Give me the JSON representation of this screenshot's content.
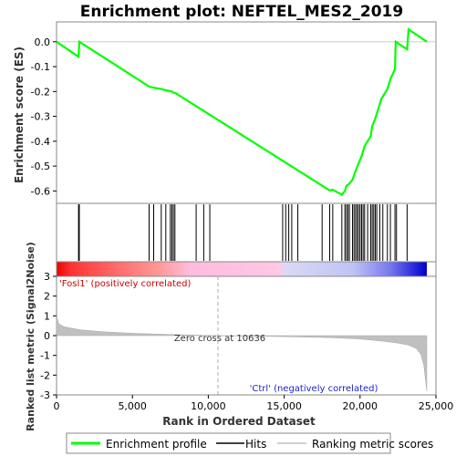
{
  "chart_data": {
    "type": "line",
    "title": "Enrichment plot: NEFTEL_MES2_2019",
    "xlabel": "Rank in Ordered Dataset",
    "ylabel_top": "Enrichment score (ES)",
    "ylabel_bottom": "Ranked list metric (Signal2Noise)",
    "xlim": [
      0,
      25000
    ],
    "x_ticks": [
      "0",
      "5,000",
      "10,000",
      "15,000",
      "20,000",
      "25,000"
    ],
    "x_tick_values": [
      0,
      5000,
      10000,
      15000,
      20000,
      25000
    ],
    "es_ylim": [
      -0.65,
      0.08
    ],
    "es_ticks": [
      "0.0",
      "-0.1",
      "-0.2",
      "-0.3",
      "-0.4",
      "-0.5",
      "-0.6"
    ],
    "es_tick_values": [
      0.0,
      -0.1,
      -0.2,
      -0.3,
      -0.4,
      -0.5,
      -0.6
    ],
    "metric_ylim": [
      -3,
      3
    ],
    "metric_ticks": [
      "3",
      "2",
      "1",
      "0",
      "-1",
      "-2",
      "-3"
    ],
    "metric_tick_values": [
      3,
      2,
      1,
      0,
      -1,
      -2,
      -3
    ],
    "zero_cross_label": "Zero cross at 10636",
    "zero_cross": 10636,
    "pos_label": "'Fosl1' (positively correlated)",
    "neg_label": "'Ctrl' (negatively correlated)",
    "dataset_size": 24400,
    "series": [
      {
        "name": "Enrichment profile",
        "color": "#00ff00",
        "x": [
          0,
          1450,
          1500,
          6100,
          6400,
          6900,
          7200,
          7600,
          7700,
          7800,
          18000,
          18200,
          18800,
          19000,
          19100,
          19300,
          19500,
          19700,
          19900,
          20100,
          20300,
          20700,
          20800,
          21000,
          21200,
          21400,
          21800,
          22000,
          22300,
          22350,
          23100,
          23200,
          24400
        ],
        "y": [
          0.0,
          -0.06,
          0.0,
          -0.18,
          -0.185,
          -0.19,
          -0.195,
          -0.2,
          -0.205,
          -0.205,
          -0.598,
          -0.595,
          -0.615,
          -0.6,
          -0.58,
          -0.57,
          -0.555,
          -0.52,
          -0.49,
          -0.46,
          -0.42,
          -0.38,
          -0.34,
          -0.31,
          -0.27,
          -0.23,
          -0.19,
          -0.15,
          -0.11,
          0.0,
          -0.03,
          0.05,
          0.0
        ]
      }
    ],
    "hits": [
      1450,
      1500,
      6100,
      6400,
      6900,
      7200,
      7500,
      7600,
      7700,
      7800,
      9200,
      9700,
      10100,
      14900,
      15100,
      15300,
      15500,
      15900,
      17500,
      18000,
      18200,
      18800,
      19000,
      19100,
      19200,
      19300,
      19500,
      19600,
      19700,
      19800,
      19900,
      20000,
      20100,
      20200,
      20300,
      20500,
      20700,
      20800,
      20900,
      21000,
      21100,
      21300,
      21500,
      21800,
      22000,
      22300,
      22400,
      23100
    ],
    "metric_curve": {
      "x": [
        0,
        150,
        500,
        1500,
        3000,
        5000,
        7000,
        9000,
        10636,
        12000,
        15000,
        18000,
        20000,
        21500,
        22500,
        23200,
        23700,
        24000,
        24200,
        24300,
        24400
      ],
      "y": [
        1.0,
        0.6,
        0.45,
        0.3,
        0.2,
        0.12,
        0.07,
        0.03,
        0.0,
        -0.02,
        -0.05,
        -0.1,
        -0.17,
        -0.28,
        -0.38,
        -0.48,
        -0.65,
        -0.95,
        -1.5,
        -2.2,
        -2.8
      ]
    },
    "legend": [
      {
        "label": "Enrichment profile",
        "color": "#00ff00"
      },
      {
        "label": "Hits",
        "color": "#000000"
      },
      {
        "label": "Ranking metric scores",
        "color": "#c0c0c0"
      }
    ]
  }
}
